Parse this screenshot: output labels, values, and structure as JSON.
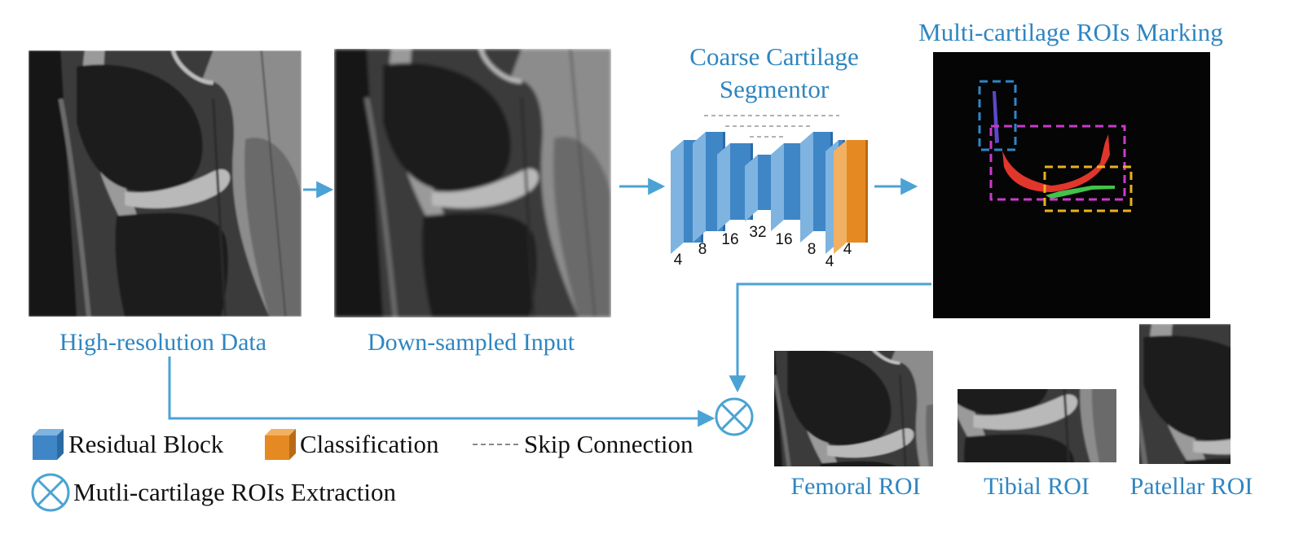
{
  "panels": {
    "high_res": {
      "label": "High-resolution Data"
    },
    "downsampled": {
      "label": "Down-sampled Input"
    },
    "segmentor": {
      "title_line1": "Coarse Cartilage",
      "title_line2": "Segmentor"
    },
    "marking": {
      "title": "Multi-cartilage ROIs Marking"
    }
  },
  "network": {
    "channels": [
      "4",
      "8",
      "16",
      "32",
      "16",
      "8",
      "4",
      "4"
    ]
  },
  "rois": {
    "femoral": "Femoral ROI",
    "tibial": "Tibial ROI",
    "patellar": "Patellar ROI"
  },
  "legend": {
    "residual": "Residual Block",
    "classification": "Classification",
    "skip": "Skip Connection",
    "extraction": "Mutli-cartilage ROIs Extraction"
  },
  "colors": {
    "accent": "#2e86c1",
    "arrow": "#4aa3d4",
    "block": "#3f86c6",
    "classifier": "#e58a22",
    "roi_blue": "#2f86c8",
    "roi_magenta": "#c93bc9",
    "roi_yellow": "#e8b21e",
    "seg_red": "#e0362c",
    "seg_green": "#43c24a",
    "seg_purple": "#5a49c9"
  }
}
